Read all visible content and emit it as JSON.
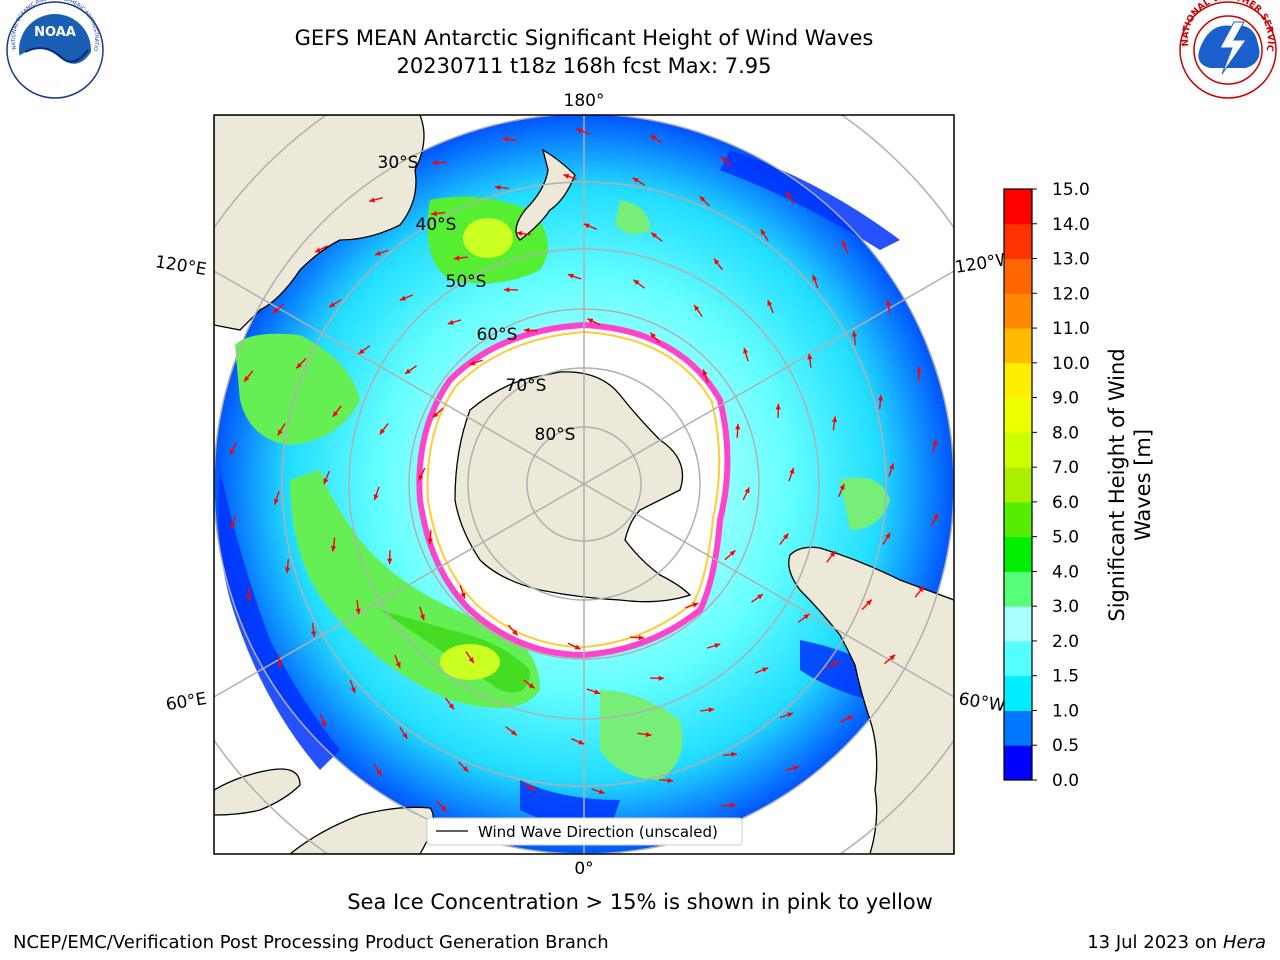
{
  "title": {
    "line1": "GEFS MEAN Antarctic Significant Height of Wind Waves",
    "line2": "20230711 t18z 168h fcst   Max: 7.95"
  },
  "map": {
    "projection": "South Polar Stereographic",
    "longitude_labels": {
      "top": "180°",
      "bottom": "0°",
      "upper_left": "120°E",
      "upper_right": "120°W",
      "lower_left": "60°E",
      "lower_right": "60°W"
    },
    "latitude_labels": [
      "30°S",
      "40°S",
      "50°S",
      "60°S",
      "70°S",
      "80°S"
    ],
    "legend": "Wind Wave Direction (unscaled)",
    "colors": {
      "land": "#ede9d8",
      "ice_shelf": "#ffffff",
      "sea_ice_edge": [
        "#ff44cc",
        "#ff99ee",
        "#ffcc33"
      ],
      "arrows": "#ff0000",
      "graticule": "#b0b0b0"
    }
  },
  "colorbar": {
    "label": "Significant Height of Wind Waves [m]",
    "label_lines": [
      "Significant Height of Wind",
      "Waves [m]"
    ],
    "ticks": [
      "0.0",
      "0.5",
      "1.0",
      "1.5",
      "2.0",
      "3.0",
      "4.0",
      "5.0",
      "6.0",
      "7.0",
      "8.0",
      "9.0",
      "10.0",
      "11.0",
      "12.0",
      "13.0",
      "14.0",
      "15.0"
    ],
    "colors": [
      "#0000ff",
      "#0077ff",
      "#00eeff",
      "#55ffff",
      "#aaffff",
      "#55ff77",
      "#00ee00",
      "#55ee00",
      "#aaee00",
      "#ccff00",
      "#eeff00",
      "#ffee00",
      "#ffbb00",
      "#ff8800",
      "#ff6600",
      "#ff3300",
      "#ff0000"
    ]
  },
  "footnote": "Sea Ice Concentration > 15% is shown in pink to yellow",
  "credits": {
    "left": "NCEP/EMC/Verification Post Processing Product Generation Branch",
    "right_date": "13 Jul 2023 on ",
    "right_host": "Hera"
  },
  "logos": {
    "left_text": "NOAA",
    "left_ring": "NATIONAL OCEANIC AND ATMOSPHERIC ADMINISTRATION · U.S. DEPARTMENT OF COMMERCE",
    "right_ring": "NATIONAL WEATHER SERVICE"
  }
}
